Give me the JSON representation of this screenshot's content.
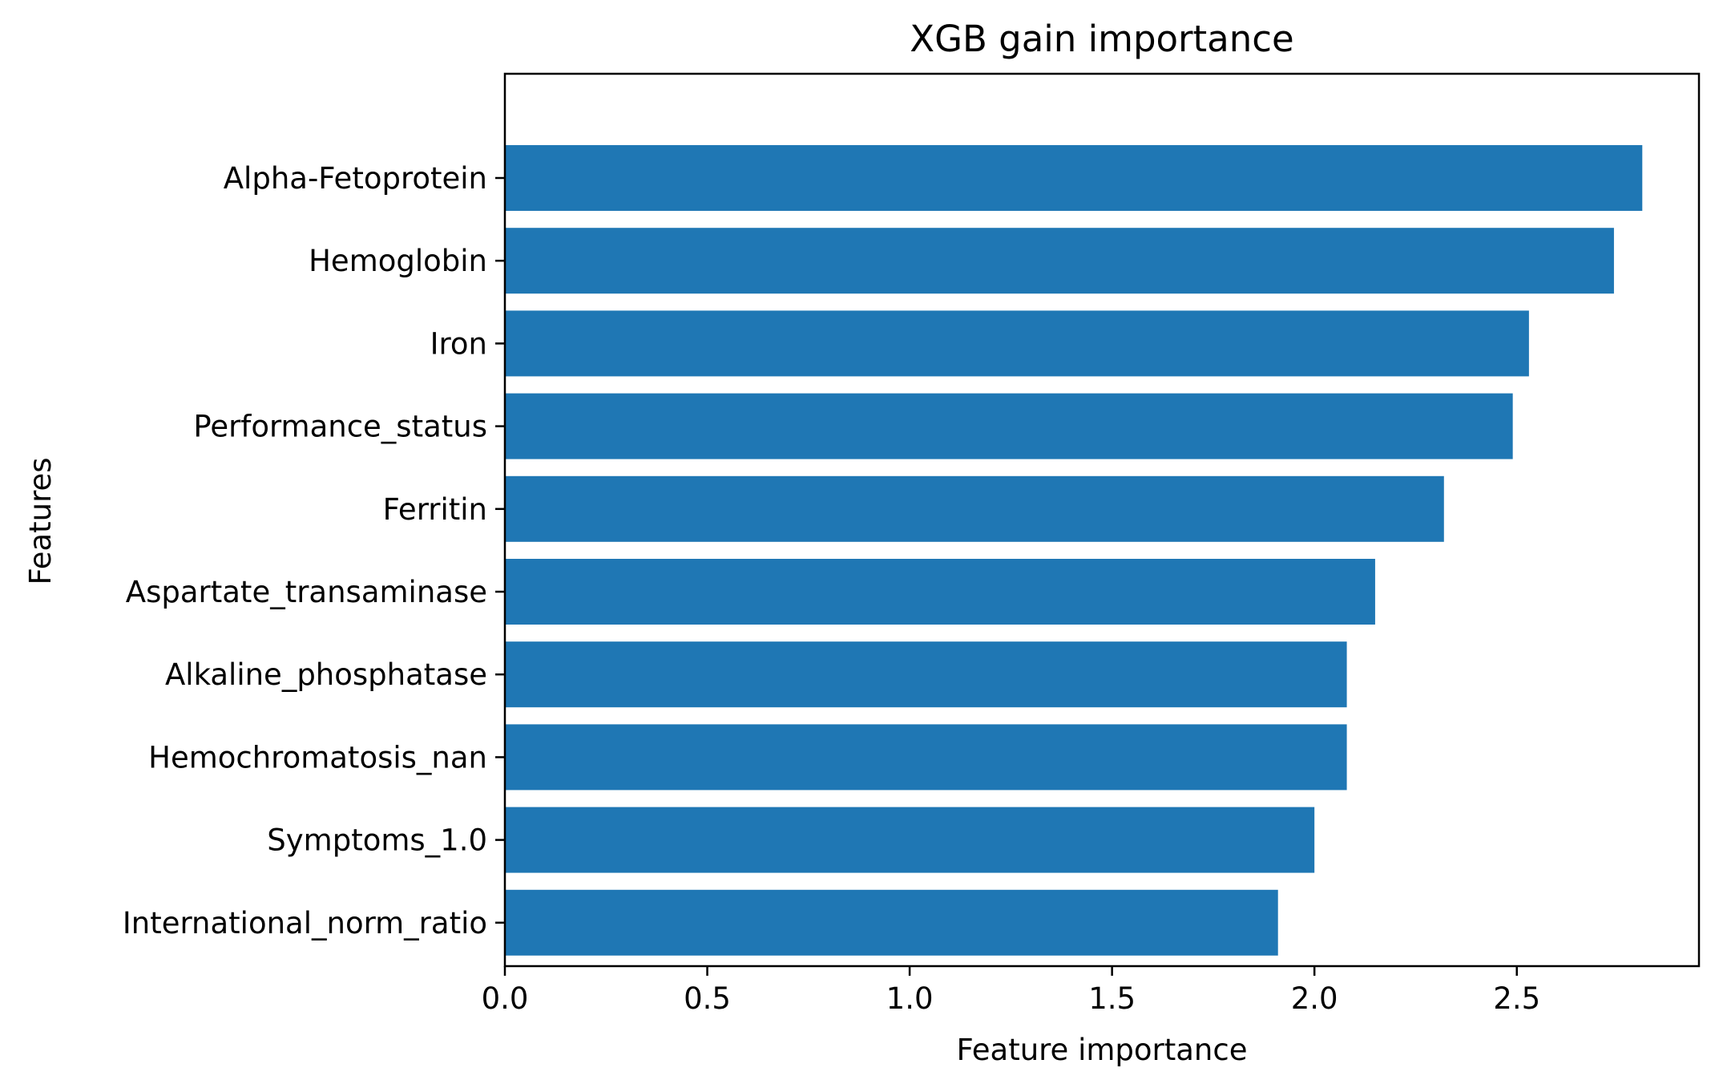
{
  "chart_data": {
    "type": "bar",
    "orientation": "horizontal",
    "title": "XGB gain importance",
    "xlabel": "Feature importance",
    "ylabel": "Features",
    "categories": [
      "Alpha-Fetoprotein",
      "Hemoglobin",
      "Iron",
      "Performance_status",
      "Ferritin",
      "Aspartate_transaminase",
      "Alkaline_phosphatase",
      "Hemochromatosis_nan",
      "Symptoms_1.0",
      "International_norm_ratio"
    ],
    "values": [
      2.81,
      2.74,
      2.53,
      2.49,
      2.32,
      2.15,
      2.08,
      2.08,
      2.0,
      1.91
    ],
    "xlim": [
      0,
      2.95
    ],
    "xticks": [
      "0.0",
      "0.5",
      "1.0",
      "1.5",
      "2.0",
      "2.5"
    ],
    "grid": false,
    "bar_color": "#1f77b4"
  }
}
